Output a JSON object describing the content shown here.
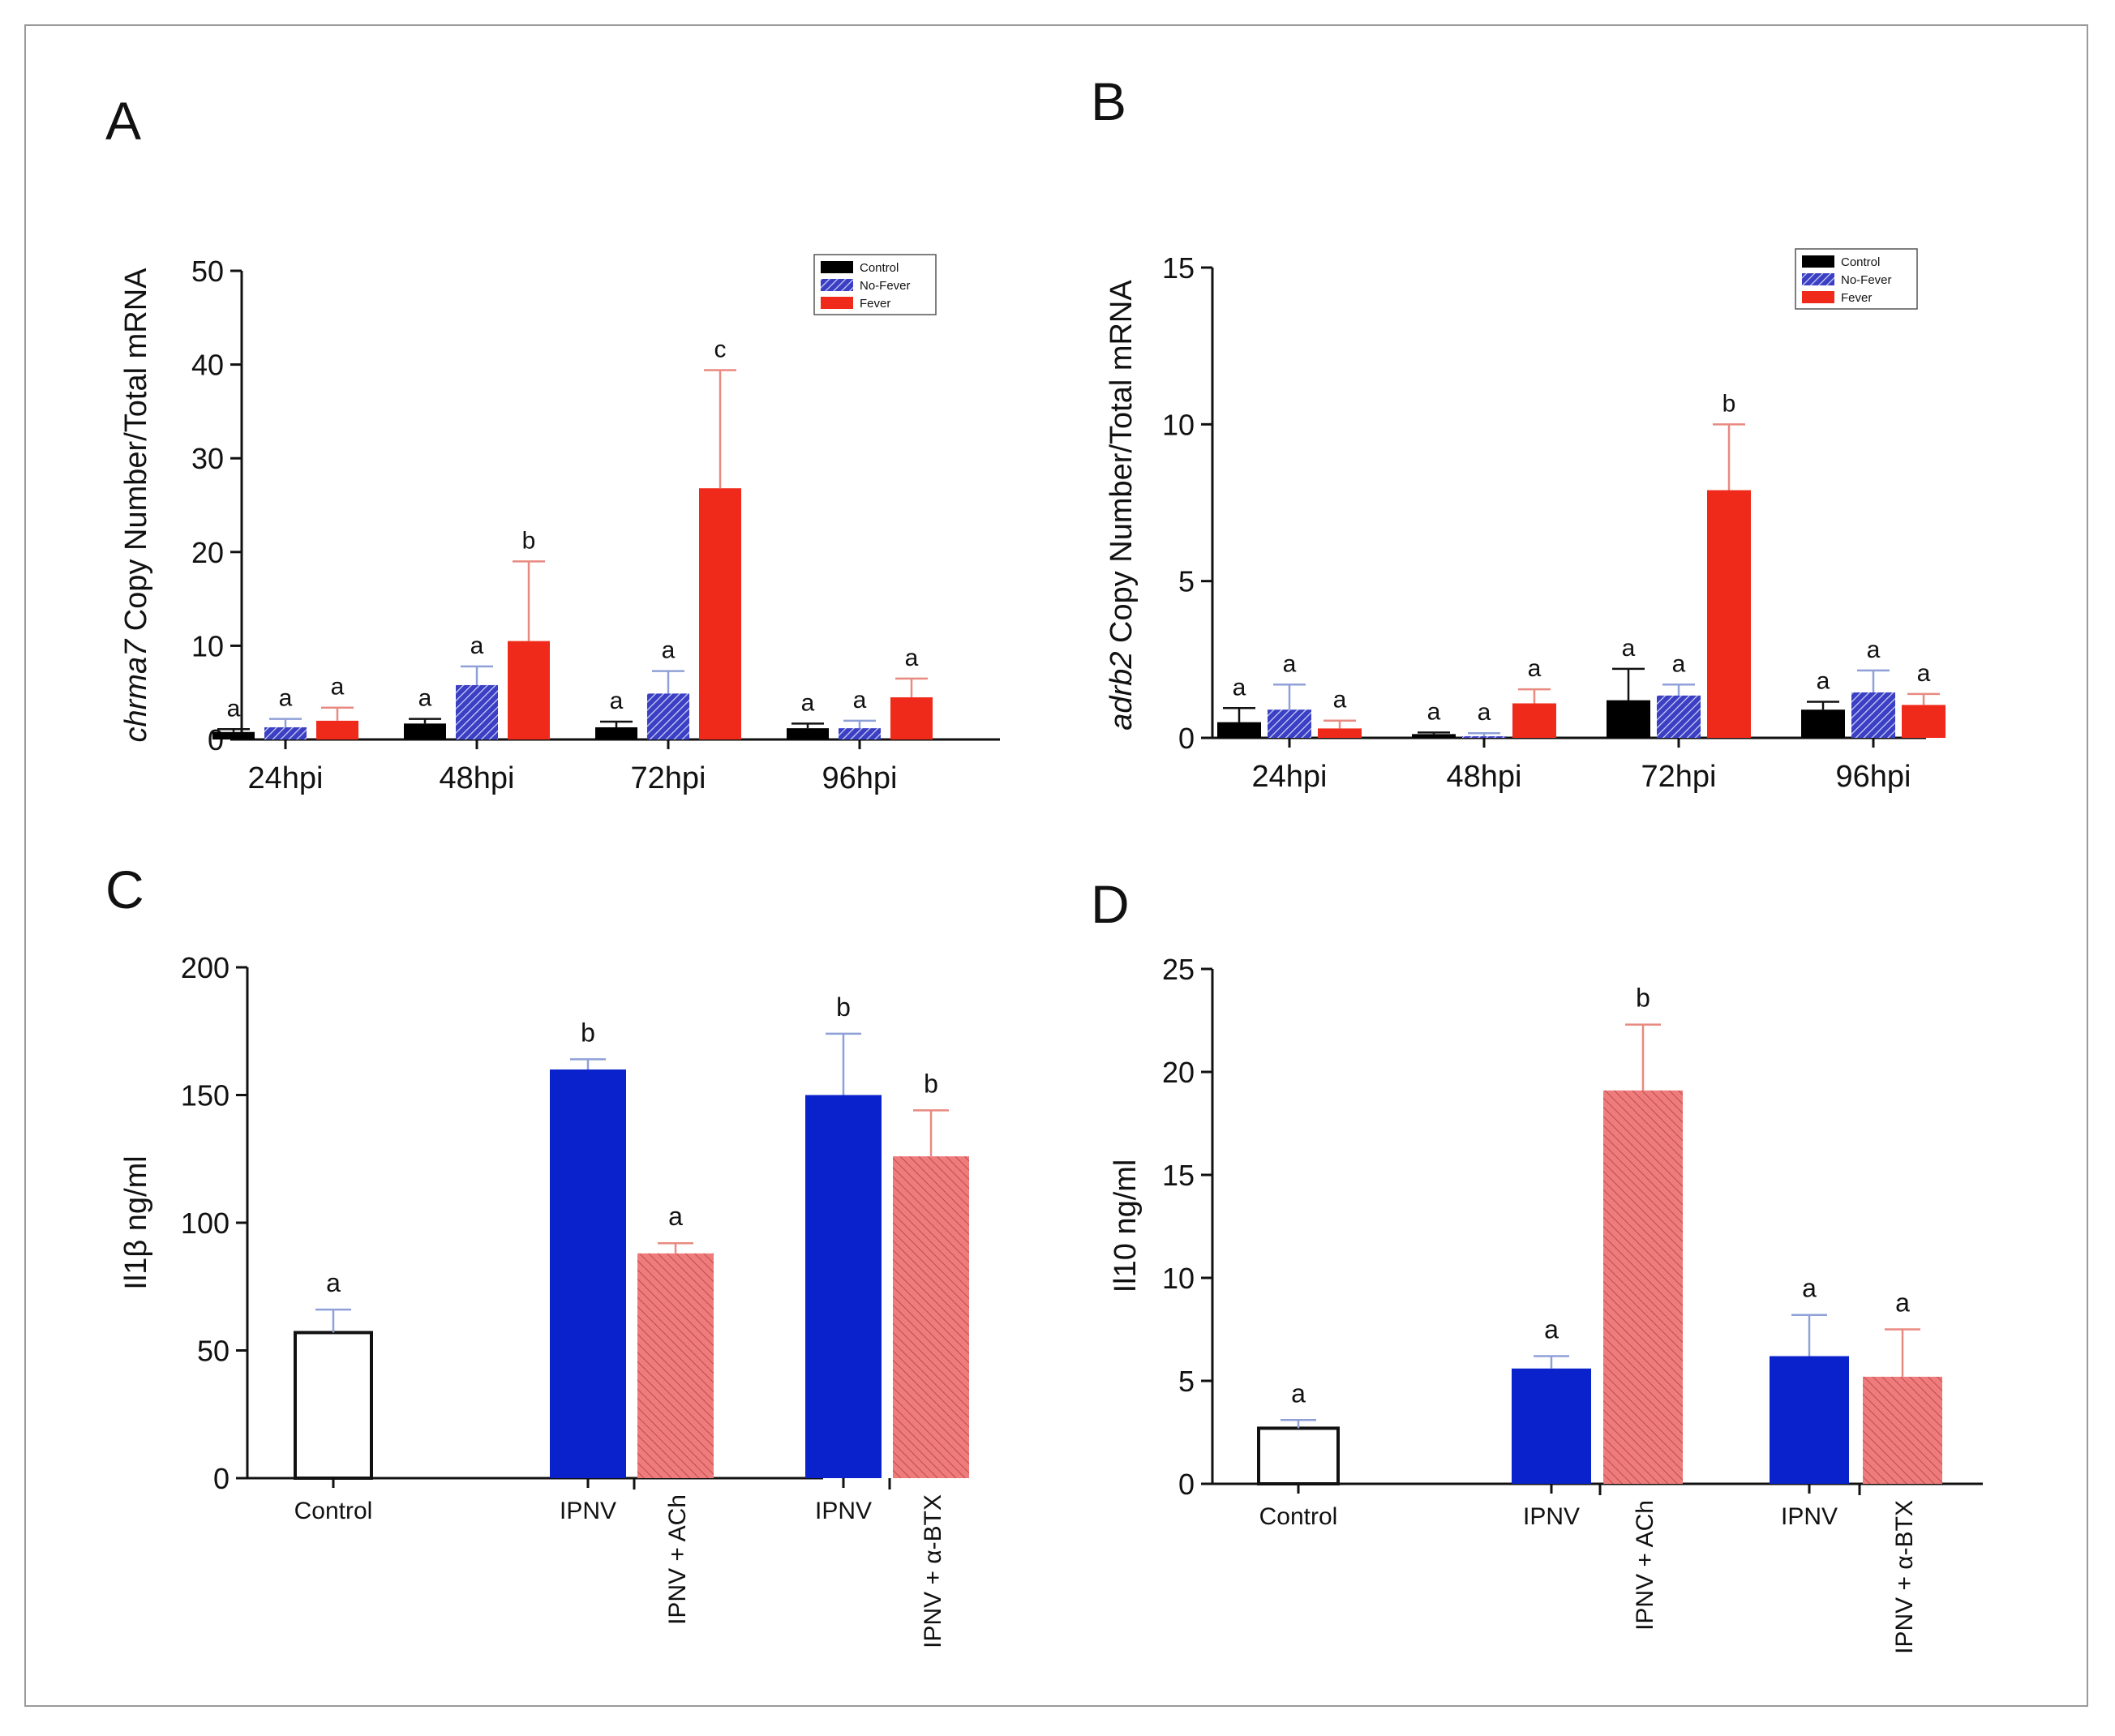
{
  "figure": {
    "panels": [
      {
        "id": "A",
        "kind": "grouped-time",
        "panel_label": "A",
        "ylabel_italic": "chrma7",
        "ylabel_rest": " Copy Number/Total mRNA",
        "yticks": [
          "0",
          "10",
          "20",
          "30",
          "40",
          "50"
        ],
        "legend": [
          "Control",
          "No-Fever",
          "Fever"
        ]
      },
      {
        "id": "B",
        "kind": "grouped-time",
        "panel_label": "B",
        "ylabel_italic": "adrb2",
        "ylabel_rest": " Copy Number/Total mRNA",
        "yticks": [
          "0",
          "5",
          "10",
          "15"
        ],
        "legend": [
          "Control",
          "No-Fever",
          "Fever"
        ]
      },
      {
        "id": "C",
        "kind": "treatment",
        "panel_label": "C",
        "ylabel": "Il1β ng/ml",
        "yticks": [
          "0",
          "50",
          "100",
          "150",
          "200"
        ]
      },
      {
        "id": "D",
        "kind": "treatment",
        "panel_label": "D",
        "ylabel": "Il10 ng/ml",
        "yticks": [
          "0",
          "5",
          "10",
          "15",
          "20",
          "25"
        ]
      }
    ]
  },
  "colors": {
    "control": "#000000",
    "no_fever": "#3a3fc4",
    "fever": "#f02a1a",
    "ipnv": "#0a22cc",
    "treated": "#e86a6a",
    "err_blue": "#8fa0d8",
    "err_red": "#e88a80"
  },
  "chart_data": [
    {
      "panel": "A",
      "type": "bar",
      "categories": [
        "24hpi",
        "48hpi",
        "72hpi",
        "96hpi"
      ],
      "series": [
        {
          "name": "Control",
          "values": [
            0.8,
            1.7,
            1.3,
            1.2
          ],
          "errors": [
            0.3,
            0.5,
            0.6,
            0.5
          ],
          "letters": [
            "a",
            "a",
            "a",
            "a"
          ]
        },
        {
          "name": "No-Fever",
          "values": [
            1.3,
            5.8,
            4.9,
            1.2
          ],
          "errors": [
            0.9,
            2.0,
            2.4,
            0.8
          ],
          "letters": [
            "a",
            "a",
            "a",
            "a"
          ]
        },
        {
          "name": "Fever",
          "values": [
            2.0,
            10.5,
            26.8,
            4.5
          ],
          "errors": [
            1.4,
            8.5,
            12.6,
            2.0
          ],
          "letters": [
            "a",
            "b",
            "c",
            "a"
          ]
        }
      ],
      "ylabel": "chrma7 Copy Number/Total mRNA",
      "ylim": [
        0,
        50
      ],
      "legend_position": "top-right"
    },
    {
      "panel": "B",
      "type": "bar",
      "categories": [
        "24hpi",
        "48hpi",
        "72hpi",
        "96hpi"
      ],
      "series": [
        {
          "name": "Control",
          "values": [
            0.5,
            0.12,
            1.2,
            0.9
          ],
          "errors": [
            0.45,
            0.05,
            1.0,
            0.25
          ],
          "letters": [
            "a",
            "a",
            "a",
            "a"
          ]
        },
        {
          "name": "No-Fever",
          "values": [
            0.9,
            0.05,
            1.35,
            1.45
          ],
          "errors": [
            0.8,
            0.1,
            0.35,
            0.7
          ],
          "letters": [
            "a",
            "a",
            "a",
            "a"
          ]
        },
        {
          "name": "Fever",
          "values": [
            0.3,
            1.1,
            7.9,
            1.05
          ],
          "errors": [
            0.25,
            0.45,
            2.1,
            0.35
          ],
          "letters": [
            "a",
            "a",
            "b",
            "a"
          ]
        }
      ],
      "ylabel": "adrb2 Copy Number/Total mRNA",
      "ylim": [
        0,
        15
      ],
      "legend_position": "top-right"
    },
    {
      "panel": "C",
      "type": "bar",
      "bars": [
        {
          "label": "Control",
          "group": "control",
          "value": 57,
          "error": 9,
          "letter": "a"
        },
        {
          "label": "IPNV",
          "group": "ipnv",
          "value": 160,
          "error": 4,
          "letter": "b"
        },
        {
          "label": "IPNV + ACh",
          "group": "treated",
          "value": 88,
          "error": 4,
          "letter": "a"
        },
        {
          "label": "IPNV",
          "group": "ipnv",
          "value": 150,
          "error": 24,
          "letter": "b"
        },
        {
          "label": "IPNV + α-BTX",
          "group": "treated",
          "value": 126,
          "error": 18,
          "letter": "b"
        }
      ],
      "ylabel": "Il1β ng/ml",
      "ylim": [
        0,
        200
      ]
    },
    {
      "panel": "D",
      "type": "bar",
      "bars": [
        {
          "label": "Control",
          "group": "control",
          "value": 2.7,
          "error": 0.4,
          "letter": "a"
        },
        {
          "label": "IPNV",
          "group": "ipnv",
          "value": 5.6,
          "error": 0.6,
          "letter": "a"
        },
        {
          "label": "IPNV + ACh",
          "group": "treated",
          "value": 19.1,
          "error": 3.2,
          "letter": "b"
        },
        {
          "label": "IPNV",
          "group": "ipnv",
          "value": 6.2,
          "error": 2.0,
          "letter": "a"
        },
        {
          "label": "IPNV + α-BTX",
          "group": "treated",
          "value": 5.2,
          "error": 2.3,
          "letter": "a"
        }
      ],
      "ylabel": "Il10 ng/ml",
      "ylim": [
        0,
        25
      ]
    }
  ]
}
